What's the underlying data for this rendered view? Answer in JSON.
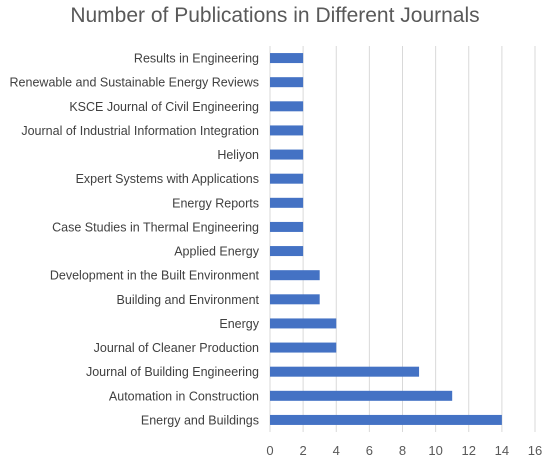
{
  "chart_data": {
    "type": "bar",
    "orientation": "horizontal",
    "title": "Number of Publications in Different Journals",
    "xlabel": "",
    "ylabel": "",
    "xlim": [
      0,
      16
    ],
    "xticks": [
      0,
      2,
      4,
      6,
      8,
      10,
      12,
      14,
      16
    ],
    "grid": true,
    "legend": "none",
    "bar_color": "#4472C4",
    "categories": [
      "Results in Engineering",
      "Renewable and Sustainable Energy Reviews",
      "KSCE Journal of Civil Engineering",
      "Journal of Industrial Information Integration",
      "Heliyon",
      "Expert Systems with Applications",
      "Energy Reports",
      "Case Studies in Thermal Engineering",
      "Applied Energy",
      "Development in the Built Environment",
      "Building and Environment",
      "Energy",
      "Journal of Cleaner Production",
      "Journal of Building Engineering",
      "Automation in Construction",
      "Energy and Buildings"
    ],
    "values": [
      2,
      2,
      2,
      2,
      2,
      2,
      2,
      2,
      2,
      3,
      3,
      4,
      4,
      9,
      11,
      14
    ]
  }
}
